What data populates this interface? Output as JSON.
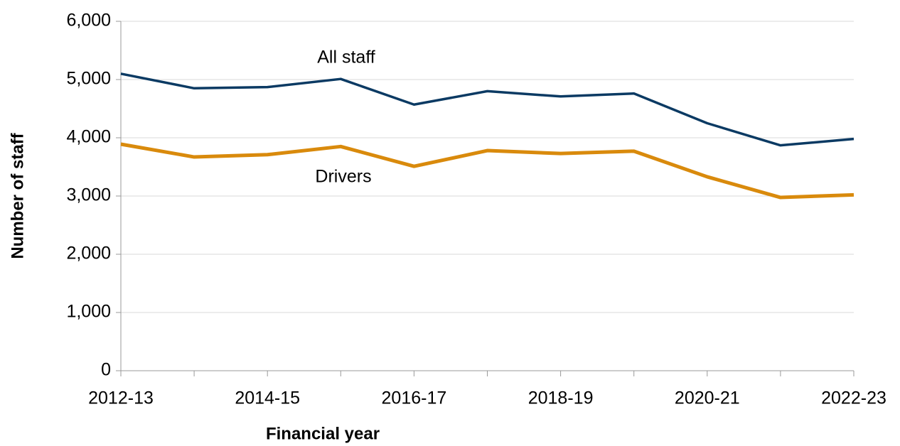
{
  "chart_data": {
    "type": "line",
    "x_label": "Financial year",
    "y_label": "Number of staff",
    "categories": [
      "2012-13",
      null,
      "2014-15",
      null,
      "2016-17",
      null,
      "2018-19",
      null,
      "2020-21",
      null,
      "2022-23"
    ],
    "series": [
      {
        "name": "All staff",
        "color": "#0b3a63",
        "values": [
          5100,
          4850,
          4870,
          5010,
          4570,
          4800,
          4710,
          4760,
          4250,
          3870,
          3980
        ]
      },
      {
        "name": "Drivers",
        "color": "#d98a0c",
        "values": [
          3890,
          3670,
          3710,
          3850,
          3510,
          3780,
          3730,
          3770,
          3330,
          2975,
          3020
        ]
      }
    ],
    "ylim": [
      0,
      6000
    ],
    "yticks": [
      0,
      {
        "value": 1000,
        "label": "1,000"
      },
      {
        "value": 2000,
        "label": "2,000"
      },
      {
        "value": 3000,
        "label": "3,000"
      },
      {
        "value": 4000,
        "label": "4,000"
      },
      {
        "value": 5000,
        "label": "5,000"
      },
      {
        "value": 6000,
        "label": "6,000"
      }
    ],
    "grid": true
  }
}
